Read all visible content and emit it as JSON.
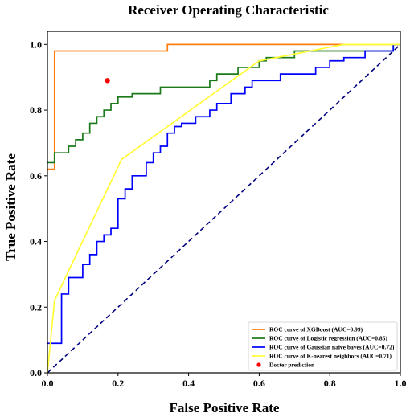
{
  "chart_data": {
    "type": "line",
    "title": "Receiver Operating Characteristic",
    "xlabel": "False Positive Rate",
    "ylabel": "True Positive Rate",
    "xlim": [
      0,
      1
    ],
    "ylim": [
      0,
      1.04
    ],
    "xticks": [
      "0.0",
      "0.2",
      "0.4",
      "0.6",
      "0.8",
      "1.0"
    ],
    "yticks": [
      "0.0",
      "0.2",
      "0.4",
      "0.6",
      "0.8",
      "1.0"
    ],
    "grid": false,
    "legend_position": "lower-right",
    "series": [
      {
        "name": "ROC curve of XGBoost (AUC=0.99)",
        "color": "#ff7f0e",
        "style": "step",
        "x": [
          0,
          0.02,
          0.02,
          0.34,
          0.34,
          0.82,
          1.0
        ],
        "y": [
          0.62,
          0.62,
          0.98,
          0.98,
          1.0,
          1.0,
          1.0
        ]
      },
      {
        "name": "ROC curve of Logistic regression (AUC=0.85)",
        "color": "#1a7a1a",
        "style": "step",
        "x": [
          0,
          0.02,
          0.02,
          0.06,
          0.06,
          0.08,
          0.08,
          0.1,
          0.1,
          0.12,
          0.12,
          0.14,
          0.14,
          0.16,
          0.16,
          0.18,
          0.18,
          0.2,
          0.2,
          0.24,
          0.24,
          0.32,
          0.32,
          0.46,
          0.46,
          0.48,
          0.48,
          0.54,
          0.54,
          0.6,
          0.6,
          0.62,
          0.62,
          0.7,
          0.7,
          0.98,
          0.98,
          1.0
        ],
        "y": [
          0.64,
          0.64,
          0.67,
          0.67,
          0.69,
          0.69,
          0.71,
          0.71,
          0.73,
          0.73,
          0.76,
          0.76,
          0.78,
          0.78,
          0.8,
          0.8,
          0.82,
          0.82,
          0.84,
          0.84,
          0.85,
          0.85,
          0.87,
          0.87,
          0.89,
          0.89,
          0.91,
          0.91,
          0.93,
          0.93,
          0.95,
          0.95,
          0.96,
          0.96,
          0.98,
          0.98,
          1.0,
          1.0
        ]
      },
      {
        "name": "ROC curve of Gaussian naive bayes (AUC=0.72)",
        "color": "#0000ff",
        "style": "step",
        "x": [
          0,
          0.04,
          0.04,
          0.06,
          0.06,
          0.1,
          0.1,
          0.12,
          0.12,
          0.14,
          0.14,
          0.16,
          0.16,
          0.18,
          0.18,
          0.2,
          0.2,
          0.22,
          0.22,
          0.24,
          0.24,
          0.28,
          0.28,
          0.3,
          0.3,
          0.32,
          0.32,
          0.34,
          0.34,
          0.36,
          0.36,
          0.38,
          0.38,
          0.42,
          0.42,
          0.46,
          0.46,
          0.48,
          0.48,
          0.52,
          0.52,
          0.56,
          0.56,
          0.58,
          0.58,
          0.66,
          0.66,
          0.76,
          0.76,
          0.8,
          0.8,
          0.84,
          0.84,
          0.9,
          0.9,
          0.98,
          0.98,
          1.0
        ],
        "y": [
          0.09,
          0.09,
          0.24,
          0.24,
          0.29,
          0.29,
          0.33,
          0.33,
          0.36,
          0.36,
          0.4,
          0.4,
          0.42,
          0.42,
          0.44,
          0.44,
          0.53,
          0.53,
          0.56,
          0.56,
          0.6,
          0.6,
          0.64,
          0.64,
          0.67,
          0.67,
          0.69,
          0.69,
          0.73,
          0.73,
          0.75,
          0.75,
          0.76,
          0.76,
          0.78,
          0.78,
          0.8,
          0.8,
          0.82,
          0.82,
          0.85,
          0.85,
          0.87,
          0.87,
          0.89,
          0.89,
          0.91,
          0.91,
          0.93,
          0.93,
          0.95,
          0.95,
          0.96,
          0.96,
          0.98,
          0.98,
          1.0,
          1.0
        ]
      },
      {
        "name": "ROC curve of K-nearest neighbors (AUC=0.71)",
        "color": "#ffff33",
        "style": "line",
        "x": [
          0.0,
          0.02,
          0.21,
          0.6,
          0.84,
          1.0
        ],
        "y": [
          0.0,
          0.22,
          0.65,
          0.95,
          1.0,
          1.0
        ]
      },
      {
        "name": "Docter prediction",
        "color": "#ff0000",
        "style": "point",
        "x": [
          0.17
        ],
        "y": [
          0.89
        ]
      }
    ],
    "diagonal": {
      "x": [
        0,
        1
      ],
      "y": [
        0,
        1
      ],
      "color": "#000080",
      "style": "dashed"
    }
  }
}
